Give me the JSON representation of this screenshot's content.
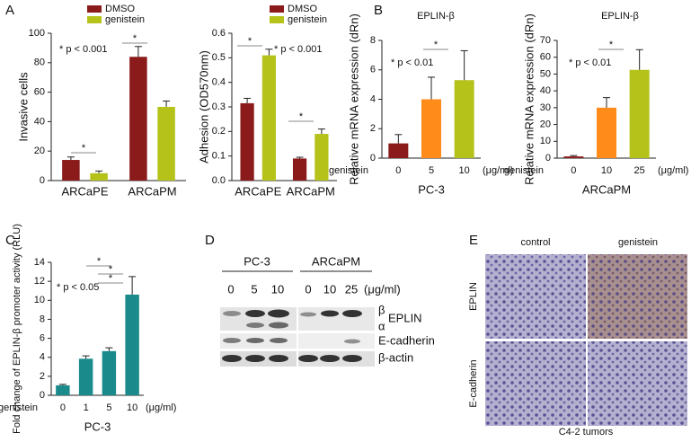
{
  "panels": {
    "a": "A",
    "b": "B",
    "c": "C",
    "d": "D",
    "e": "E"
  },
  "chart_data": [
    {
      "type": "bar",
      "ylabel": "Invasive cells",
      "categories": [
        "ARCaPE",
        "ARCaPM"
      ],
      "series": [
        {
          "name": "DMSO",
          "color": "#8b1a1a",
          "values": [
            14,
            84
          ],
          "errors": [
            2,
            7
          ]
        },
        {
          "name": "genistein",
          "color": "#b5c21a",
          "values": [
            5,
            50
          ],
          "errors": [
            1.5,
            4
          ]
        }
      ],
      "ylim": [
        0,
        100
      ],
      "yticks": [
        0,
        20,
        40,
        60,
        80,
        100
      ],
      "annotations": [
        {
          "text": "* p < 0.001"
        },
        {
          "text": "*"
        },
        {
          "text": "*"
        }
      ]
    },
    {
      "type": "bar",
      "ylabel": "Adhesion (OD570nm)",
      "categories": [
        "ARCaPE",
        "ARCaPM"
      ],
      "series": [
        {
          "name": "DMSO",
          "color": "#8b1a1a",
          "values": [
            0.315,
            0.09
          ],
          "errors": [
            0.02,
            0.005
          ]
        },
        {
          "name": "genistein",
          "color": "#b5c21a",
          "values": [
            0.51,
            0.19
          ],
          "errors": [
            0.025,
            0.02
          ]
        }
      ],
      "ylim": [
        0,
        0.6
      ],
      "yticks": [
        {
          "value": 0,
          "label": "0.0"
        },
        0.1,
        0.2,
        0.3,
        0.4,
        0.5,
        0.6
      ],
      "annotations": [
        {
          "text": "* p < 0.001"
        },
        {
          "text": "*"
        },
        {
          "text": "*"
        }
      ]
    },
    {
      "type": "bar",
      "title": "EPLIN-β",
      "ylabel": "Relative mRNA expression (dRn)",
      "xprefix": "genistein",
      "xunit": "(μg/ml)",
      "xlabel": "PC-3",
      "categories": [
        "0",
        "5",
        "10"
      ],
      "values": [
        1.0,
        4.0,
        5.3
      ],
      "errors": [
        0.6,
        1.5,
        2.0
      ],
      "colors": [
        "#8b1a1a",
        "#ff8c1a",
        "#b5c21a"
      ],
      "ylim": [
        0,
        8
      ],
      "yticks": [
        0,
        2,
        4,
        6,
        8
      ],
      "annotations": [
        {
          "text": "* p < 0.01"
        },
        {
          "text": "*"
        }
      ]
    },
    {
      "type": "bar",
      "title": "EPLIN-β",
      "ylabel": "Relative mRNA expression (dRn)",
      "xprefix": "genistein",
      "xunit": "(μg/ml)",
      "xlabel": "ARCaPM",
      "categories": [
        "0",
        "10",
        "25"
      ],
      "values": [
        1,
        30,
        52.5
      ],
      "errors": [
        0.5,
        6,
        12
      ],
      "colors": [
        "#8b1a1a",
        "#ff8c1a",
        "#b5c21a"
      ],
      "ylim": [
        0,
        70
      ],
      "yticks": [
        0,
        10,
        20,
        30,
        40,
        50,
        60,
        70
      ],
      "annotations": [
        {
          "text": "* p < 0.01"
        },
        {
          "text": "*"
        }
      ]
    },
    {
      "type": "bar",
      "ylabel": "Fold change of EPLIN-β promoter activity (RLU)",
      "xprefix": "genistein",
      "xunit": "(μg/ml)",
      "xlabel": "PC-3",
      "categories": [
        "0",
        "1",
        "5",
        "10"
      ],
      "values": [
        1.05,
        3.85,
        4.65,
        10.6
      ],
      "errors": [
        0.1,
        0.3,
        0.35,
        1.9
      ],
      "colors": [
        "#1a8a8a",
        "#1a8a8a",
        "#1a8a8a",
        "#1a8a8a"
      ],
      "ylim": [
        0,
        14
      ],
      "yticks": [
        0,
        2,
        4,
        6,
        8,
        10,
        12,
        14
      ],
      "annotations": [
        {
          "text": "* p < 0.05"
        },
        {
          "text": "*"
        },
        {
          "text": "*"
        },
        {
          "text": "*"
        }
      ]
    }
  ],
  "blot": {
    "groups": [
      "PC-3",
      "ARCaPM"
    ],
    "doses": [
      "0",
      "5",
      "10",
      "0",
      "10",
      "25"
    ],
    "unit": "(μg/ml)",
    "beta": "β",
    "alpha": "α",
    "rows": [
      "EPLIN",
      "E-cadherin",
      "β-actin"
    ]
  },
  "ihc": {
    "columns": [
      "control",
      "genistein"
    ],
    "rows": [
      "EPLIN",
      "E-cadherin"
    ],
    "caption": "C4-2 tumors"
  }
}
